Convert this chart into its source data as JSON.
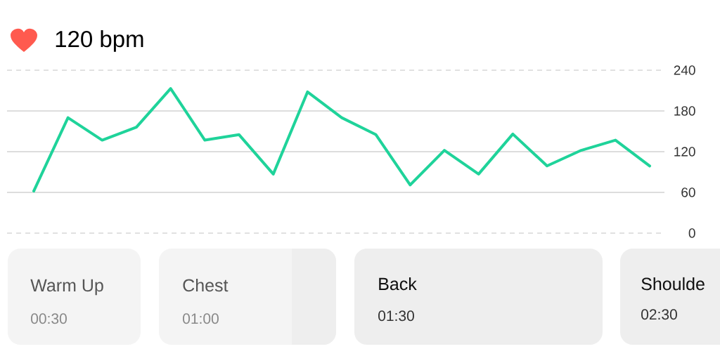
{
  "chart_data": {
    "type": "line",
    "title": "120 bpm",
    "categories": [
      null,
      null,
      null,
      null,
      null,
      null,
      null,
      null,
      null,
      null,
      null,
      null,
      null,
      null,
      null,
      null,
      null,
      null,
      null
    ],
    "values": [
      62,
      170,
      137,
      156,
      213,
      137,
      145,
      87,
      208,
      170,
      145,
      71,
      122,
      87,
      146,
      99,
      122,
      137,
      99
    ],
    "color": "#1fd39a",
    "ylim": [
      0,
      240
    ],
    "yticks": [
      0,
      60,
      120,
      180,
      240
    ],
    "grid": "y",
    "tick_labels": "y",
    "annotations": [
      "Warm Up",
      "00:30",
      "Chest",
      "01:00",
      "Back",
      "01:30",
      "Shoulde",
      "02:30"
    ]
  }
}
